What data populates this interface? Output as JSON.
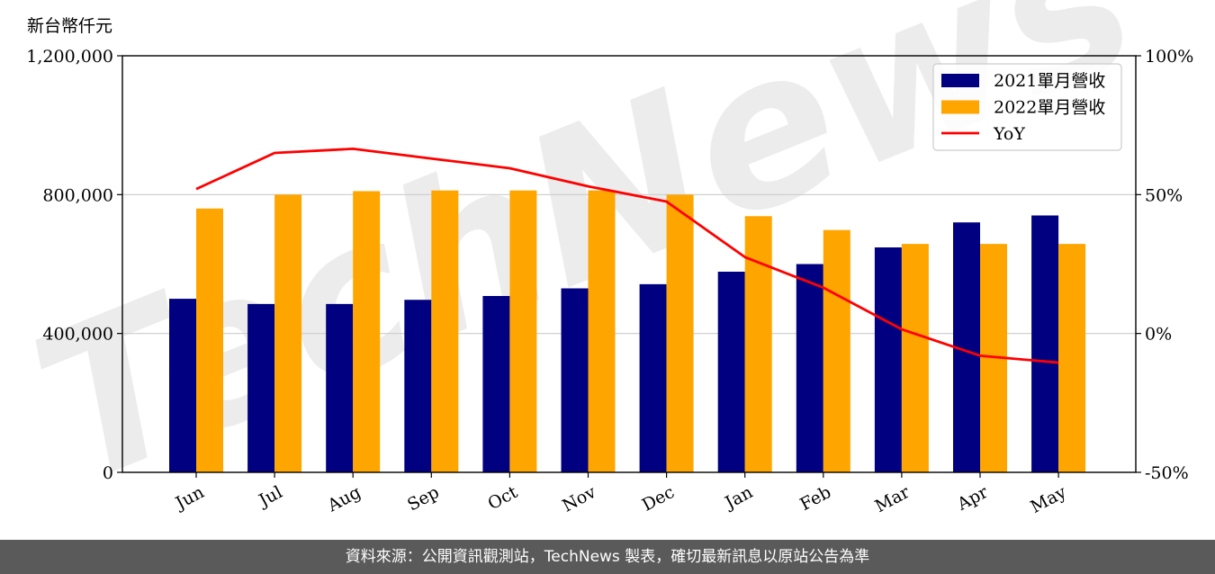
{
  "unit_label": "新台幣仟元",
  "footer_text": "資料來源：公開資訊觀測站，TechNews 製表，確切最新訊息以原站公告為準",
  "watermark_text": "TechNews",
  "chart_data": {
    "type": "bar",
    "categories": [
      "Jun",
      "Jul",
      "Aug",
      "Sep",
      "Oct",
      "Nov",
      "Dec",
      "Jan",
      "Feb",
      "Mar",
      "Apr",
      "May"
    ],
    "series": [
      {
        "name": "2021單月營收",
        "type": "bar",
        "axis": "left",
        "color": "#000080",
        "values": [
          500000,
          485000,
          485000,
          497000,
          508000,
          530000,
          542000,
          578000,
          600000,
          648000,
          720000,
          740000
        ]
      },
      {
        "name": "2022單月營收",
        "type": "bar",
        "axis": "left",
        "color": "#FFA500",
        "values": [
          760000,
          800000,
          810000,
          812000,
          812000,
          812000,
          800000,
          738000,
          698000,
          658000,
          658000,
          658000
        ]
      },
      {
        "name": "YoY",
        "type": "line",
        "axis": "right",
        "color": "#FF0000",
        "values": [
          52,
          65,
          66.5,
          63,
          59.5,
          53,
          47.5,
          27.5,
          16.5,
          1.5,
          -8,
          -10.5
        ]
      }
    ],
    "left_axis": {
      "ylim": [
        0,
        1200000
      ],
      "ticks": [
        0,
        400000,
        800000,
        1200000
      ],
      "tick_labels": [
        "0",
        "400,000",
        "800,000",
        "1,200,000"
      ]
    },
    "right_axis": {
      "ylim": [
        -50,
        100
      ],
      "ticks": [
        -50,
        0,
        50,
        100
      ],
      "tick_labels": [
        "-50%",
        "0%",
        "50%",
        "100%"
      ]
    },
    "grid": "horizontal",
    "legend_position": "top-right"
  }
}
